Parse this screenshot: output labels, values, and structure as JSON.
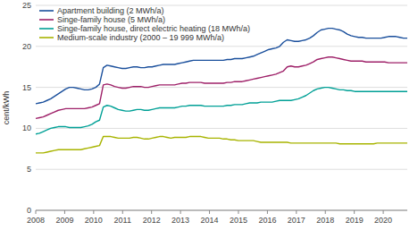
{
  "chart_data": {
    "type": "line",
    "ylabel": "cent/kWh",
    "xlim": [
      2008.0,
      2020.83
    ],
    "ylim": [
      0,
      25
    ],
    "xticks": [
      2008,
      2009,
      2010,
      2011,
      2012,
      2013,
      2014,
      2015,
      2016,
      2017,
      2018,
      2019,
      2020
    ],
    "yticks": [
      0,
      5,
      10,
      15,
      20,
      25
    ],
    "grid": "y",
    "legend": "upper left",
    "x": [
      2008.0,
      2008.1296,
      2008.2592,
      2008.3888,
      2008.5184,
      2008.648,
      2008.7776,
      2008.9072,
      2009.0368,
      2009.1664,
      2009.296,
      2009.4256,
      2009.5552,
      2009.6847,
      2009.8143,
      2009.9439,
      2010.0735,
      2010.2031,
      2010.3327,
      2010.4623,
      2010.5919,
      2010.7215,
      2010.8511,
      2010.9807,
      2011.1103,
      2011.2399,
      2011.3695,
      2011.4991,
      2011.6287,
      2011.7583,
      2011.8879,
      2012.0175,
      2012.1471,
      2012.2767,
      2012.4063,
      2012.5359,
      2012.6655,
      2012.7951,
      2012.9246,
      2013.0542,
      2013.1838,
      2013.3134,
      2013.443,
      2013.5726,
      2013.7022,
      2013.8318,
      2013.9614,
      2014.091,
      2014.2206,
      2014.3502,
      2014.4798,
      2014.6094,
      2014.739,
      2014.8686,
      2014.9982,
      2015.1278,
      2015.2574,
      2015.387,
      2015.5166,
      2015.6462,
      2015.7758,
      2015.9054,
      2016.0349,
      2016.1645,
      2016.2941,
      2016.4237,
      2016.5533,
      2016.6829,
      2016.8125,
      2016.9421,
      2017.0717,
      2017.2013,
      2017.3309,
      2017.4605,
      2017.5901,
      2017.7197,
      2017.8493,
      2017.9789,
      2018.1085,
      2018.2381,
      2018.3677,
      2018.4973,
      2018.6269,
      2018.7565,
      2018.8861,
      2019.0157,
      2019.1453,
      2019.2748,
      2019.4044,
      2019.534,
      2019.6636,
      2019.7932,
      2019.9228,
      2020.0524,
      2020.182,
      2020.3116,
      2020.4412,
      2020.5708,
      2020.7004,
      2020.83
    ],
    "series": [
      {
        "name": "Apartment building (2 MWh/a)",
        "color": "#1a4f9c",
        "values": [
          13.0,
          13.1,
          13.2,
          13.4,
          13.6,
          13.9,
          14.2,
          14.5,
          14.8,
          15.0,
          15.0,
          14.9,
          14.8,
          14.7,
          14.7,
          14.8,
          15.0,
          15.4,
          17.4,
          17.7,
          17.6,
          17.5,
          17.4,
          17.3,
          17.3,
          17.4,
          17.5,
          17.5,
          17.4,
          17.4,
          17.5,
          17.5,
          17.6,
          17.7,
          17.8,
          17.8,
          17.8,
          17.8,
          17.9,
          18.0,
          18.1,
          18.2,
          18.3,
          18.3,
          18.3,
          18.3,
          18.3,
          18.3,
          18.3,
          18.3,
          18.3,
          18.4,
          18.4,
          18.5,
          18.5,
          18.5,
          18.6,
          18.7,
          18.8,
          19.0,
          19.2,
          19.4,
          19.6,
          19.7,
          19.8,
          20.0,
          20.5,
          20.8,
          20.7,
          20.6,
          20.6,
          20.7,
          20.8,
          21.0,
          21.3,
          21.7,
          22.0,
          22.1,
          22.2,
          22.2,
          22.1,
          22.0,
          21.8,
          21.5,
          21.3,
          21.2,
          21.1,
          21.1,
          21.0,
          21.0,
          21.0,
          21.0,
          21.0,
          21.1,
          21.2,
          21.2,
          21.2,
          21.1,
          21.0,
          21.0
        ]
      },
      {
        "name": "Singe-family house (5 MWh/a)",
        "color": "#9e2068",
        "values": [
          11.2,
          11.3,
          11.4,
          11.6,
          11.8,
          12.0,
          12.2,
          12.3,
          12.4,
          12.4,
          12.4,
          12.4,
          12.4,
          12.4,
          12.5,
          12.6,
          12.8,
          13.0,
          15.3,
          15.4,
          15.3,
          15.1,
          15.0,
          14.9,
          14.9,
          15.0,
          15.1,
          15.1,
          15.1,
          15.0,
          15.0,
          15.1,
          15.2,
          15.3,
          15.3,
          15.3,
          15.3,
          15.3,
          15.4,
          15.5,
          15.5,
          15.6,
          15.6,
          15.6,
          15.6,
          15.5,
          15.5,
          15.5,
          15.5,
          15.5,
          15.5,
          15.6,
          15.6,
          15.7,
          15.7,
          15.7,
          15.8,
          15.9,
          16.0,
          16.1,
          16.2,
          16.3,
          16.4,
          16.5,
          16.6,
          16.8,
          17.0,
          17.5,
          17.6,
          17.5,
          17.5,
          17.6,
          17.7,
          17.9,
          18.1,
          18.4,
          18.5,
          18.6,
          18.7,
          18.7,
          18.6,
          18.5,
          18.4,
          18.3,
          18.2,
          18.2,
          18.2,
          18.2,
          18.1,
          18.1,
          18.1,
          18.1,
          18.1,
          18.1,
          18.0,
          18.0,
          18.0,
          18.0,
          18.0,
          18.0
        ]
      },
      {
        "name": "Singe-family house, direct electric heating (18 MWh/a)",
        "color": "#00a096",
        "values": [
          9.3,
          9.4,
          9.6,
          9.8,
          10.0,
          10.1,
          10.2,
          10.2,
          10.2,
          10.1,
          10.1,
          10.1,
          10.1,
          10.2,
          10.3,
          10.5,
          10.8,
          11.0,
          12.6,
          12.8,
          12.7,
          12.5,
          12.3,
          12.2,
          12.1,
          12.1,
          12.2,
          12.3,
          12.3,
          12.2,
          12.2,
          12.3,
          12.4,
          12.5,
          12.5,
          12.5,
          12.5,
          12.5,
          12.6,
          12.7,
          12.7,
          12.8,
          12.8,
          12.8,
          12.8,
          12.7,
          12.7,
          12.7,
          12.7,
          12.7,
          12.7,
          12.8,
          12.8,
          12.9,
          12.9,
          12.9,
          13.0,
          13.1,
          13.1,
          13.1,
          13.2,
          13.2,
          13.2,
          13.2,
          13.3,
          13.4,
          13.4,
          13.4,
          13.4,
          13.5,
          13.6,
          13.8,
          14.0,
          14.3,
          14.6,
          14.8,
          14.9,
          15.0,
          15.0,
          14.9,
          14.8,
          14.7,
          14.7,
          14.6,
          14.6,
          14.5,
          14.5,
          14.5,
          14.5,
          14.5,
          14.5,
          14.5,
          14.5,
          14.5,
          14.5,
          14.5,
          14.5,
          14.5,
          14.5,
          14.5
        ]
      },
      {
        "name": "Medium-scale industry (2000 – 19 999 MWh/a)",
        "color": "#a8b400",
        "values": [
          7.0,
          7.0,
          7.0,
          7.1,
          7.2,
          7.3,
          7.4,
          7.4,
          7.4,
          7.4,
          7.4,
          7.4,
          7.4,
          7.5,
          7.6,
          7.7,
          7.8,
          7.9,
          9.0,
          9.0,
          9.0,
          8.9,
          8.8,
          8.8,
          8.8,
          8.8,
          8.9,
          8.9,
          8.8,
          8.7,
          8.7,
          8.8,
          8.9,
          9.0,
          9.0,
          8.9,
          8.8,
          8.9,
          8.9,
          8.9,
          8.9,
          9.0,
          9.0,
          9.0,
          9.0,
          8.9,
          8.8,
          8.8,
          8.8,
          8.8,
          8.7,
          8.7,
          8.6,
          8.6,
          8.5,
          8.5,
          8.5,
          8.5,
          8.5,
          8.4,
          8.3,
          8.3,
          8.3,
          8.3,
          8.3,
          8.3,
          8.3,
          8.3,
          8.2,
          8.2,
          8.2,
          8.2,
          8.2,
          8.2,
          8.2,
          8.2,
          8.2,
          8.2,
          8.2,
          8.2,
          8.2,
          8.1,
          8.1,
          8.1,
          8.1,
          8.1,
          8.1,
          8.1,
          8.1,
          8.1,
          8.1,
          8.2,
          8.2,
          8.2,
          8.2,
          8.2,
          8.2,
          8.2,
          8.2,
          8.2
        ]
      }
    ]
  }
}
